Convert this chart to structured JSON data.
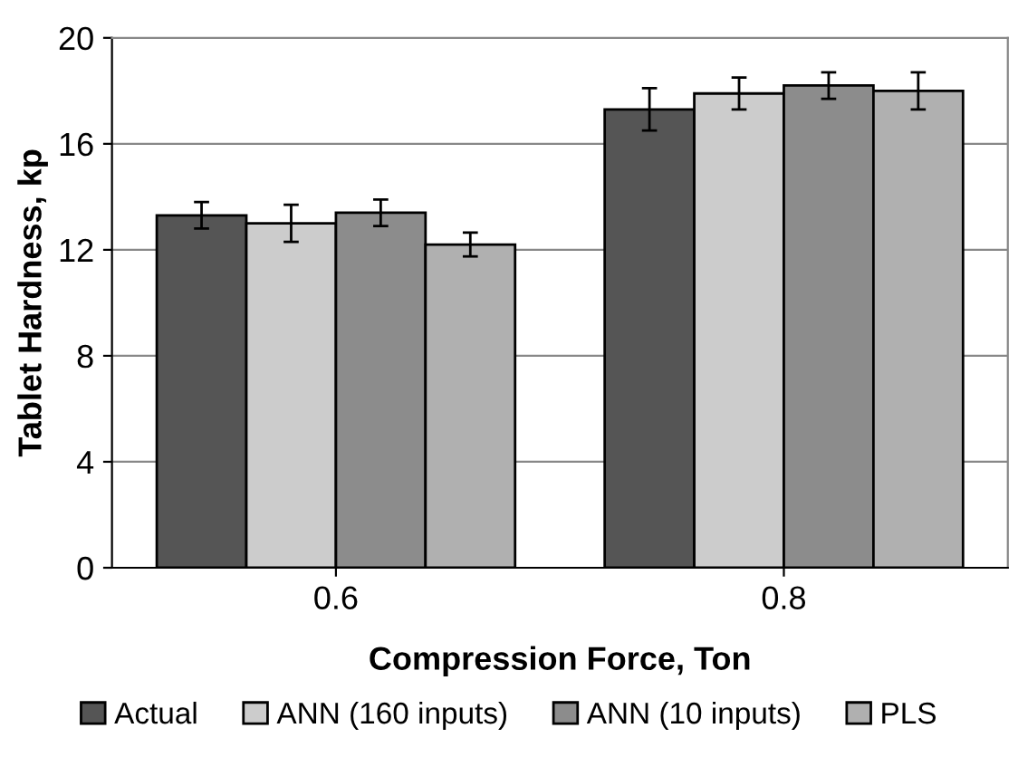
{
  "chart_data": {
    "type": "bar",
    "xlabel": "Compression Force, Ton",
    "ylabel": "Tablet Hardness, kp",
    "categories": [
      "0.6",
      "0.8"
    ],
    "series": [
      {
        "name": "Actual",
        "color": "#555555",
        "values": [
          13.3,
          17.3
        ],
        "errors": [
          0.5,
          0.8
        ]
      },
      {
        "name": "ANN (160 inputs)",
        "color": "#cccccc",
        "values": [
          13.0,
          17.9
        ],
        "errors": [
          0.7,
          0.6
        ]
      },
      {
        "name": "ANN (10 inputs)",
        "color": "#8c8c8c",
        "values": [
          13.4,
          18.2
        ],
        "errors": [
          0.5,
          0.5
        ]
      },
      {
        "name": "PLS",
        "color": "#b0b0b0",
        "values": [
          12.2,
          18.0
        ],
        "errors": [
          0.45,
          0.7
        ]
      }
    ],
    "ylim": [
      0,
      20
    ],
    "yticks": [
      0,
      4,
      8,
      12,
      16,
      20
    ],
    "grid": "y",
    "legend": "bottom"
  }
}
